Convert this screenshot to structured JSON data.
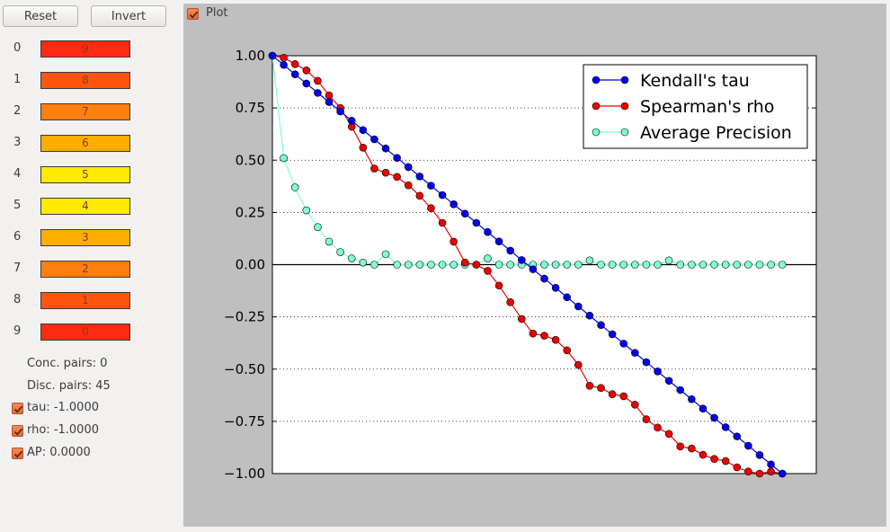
{
  "toolbar": {
    "reset_label": "Reset",
    "invert_label": "Invert",
    "plot_label": "Plot",
    "plot_checked": true
  },
  "ranking": [
    {
      "index": "0",
      "value": "9",
      "color": "#ff2a10"
    },
    {
      "index": "1",
      "value": "8",
      "color": "#ff5410"
    },
    {
      "index": "2",
      "value": "7",
      "color": "#ff7e10"
    },
    {
      "index": "3",
      "value": "6",
      "color": "#ffae00"
    },
    {
      "index": "4",
      "value": "5",
      "color": "#ffea00"
    },
    {
      "index": "5",
      "value": "4",
      "color": "#ffea00"
    },
    {
      "index": "6",
      "value": "3",
      "color": "#ffae00"
    },
    {
      "index": "7",
      "value": "2",
      "color": "#ff7e10"
    },
    {
      "index": "8",
      "value": "1",
      "color": "#ff5410"
    },
    {
      "index": "9",
      "value": "0",
      "color": "#ff2a10"
    }
  ],
  "stats": {
    "conc_pairs": "Conc. pairs: 0",
    "disc_pairs": "Disc. pairs: 45",
    "tau": "tau: -1.0000",
    "rho": "rho: -1.0000",
    "ap": "AP: 0.0000"
  },
  "chart_data": {
    "type": "line",
    "ylim": [
      -1.0,
      1.0
    ],
    "yticks": [
      "1.00",
      "0.75",
      "0.50",
      "0.25",
      "0.00",
      "−0.25",
      "−0.50",
      "−0.75",
      "−1.00"
    ],
    "ytick_values": [
      1.0,
      0.75,
      0.5,
      0.25,
      0.0,
      -0.25,
      -0.5,
      -0.75,
      -1.0
    ],
    "grid_y": true,
    "legend_position": "top-right",
    "x": [
      0,
      1,
      2,
      3,
      4,
      5,
      6,
      7,
      8,
      9,
      10,
      11,
      12,
      13,
      14,
      15,
      16,
      17,
      18,
      19,
      20,
      21,
      22,
      23,
      24,
      25,
      26,
      27,
      28,
      29,
      30,
      31,
      32,
      33,
      34,
      35,
      36,
      37,
      38,
      39,
      40,
      41,
      42,
      43,
      44,
      45
    ],
    "series": [
      {
        "name": "Kendall's tau",
        "color": "#0000ee",
        "values": [
          1.0,
          0.956,
          0.911,
          0.867,
          0.822,
          0.778,
          0.733,
          0.689,
          0.644,
          0.6,
          0.556,
          0.511,
          0.467,
          0.422,
          0.378,
          0.333,
          0.289,
          0.244,
          0.2,
          0.156,
          0.111,
          0.067,
          0.022,
          -0.022,
          -0.067,
          -0.111,
          -0.156,
          -0.2,
          -0.244,
          -0.289,
          -0.333,
          -0.378,
          -0.422,
          -0.467,
          -0.511,
          -0.556,
          -0.6,
          -0.644,
          -0.689,
          -0.733,
          -0.778,
          -0.822,
          -0.867,
          -0.911,
          -0.956,
          -1.0
        ]
      },
      {
        "name": "Spearman's rho",
        "color": "#ee0000",
        "values": [
          1.0,
          0.99,
          0.96,
          0.93,
          0.88,
          0.81,
          0.75,
          0.66,
          0.56,
          0.46,
          0.44,
          0.42,
          0.38,
          0.33,
          0.27,
          0.2,
          0.11,
          0.01,
          0.0,
          -0.03,
          -0.1,
          -0.18,
          -0.26,
          -0.33,
          -0.34,
          -0.36,
          -0.41,
          -0.48,
          -0.58,
          -0.59,
          -0.62,
          -0.63,
          -0.67,
          -0.74,
          -0.78,
          -0.81,
          -0.87,
          -0.88,
          -0.91,
          -0.93,
          -0.94,
          -0.97,
          -0.99,
          -1.0,
          -0.99,
          -1.0
        ]
      },
      {
        "name": "Average Precision",
        "color": "#7fffd4",
        "values": [
          1.0,
          0.51,
          0.37,
          0.26,
          0.18,
          0.11,
          0.06,
          0.03,
          0.01,
          0.0,
          0.05,
          0.0,
          0.0,
          0.0,
          0.0,
          0.0,
          0.0,
          0.0,
          0.0,
          0.03,
          0.0,
          0.0,
          0.0,
          0.0,
          0.0,
          0.0,
          0.0,
          0.0,
          0.02,
          0.0,
          0.0,
          0.0,
          0.0,
          0.0,
          0.0,
          0.02,
          0.0,
          0.0,
          0.0,
          0.0,
          0.0,
          0.0,
          0.0,
          0.0,
          0.0,
          0.0
        ]
      }
    ]
  }
}
